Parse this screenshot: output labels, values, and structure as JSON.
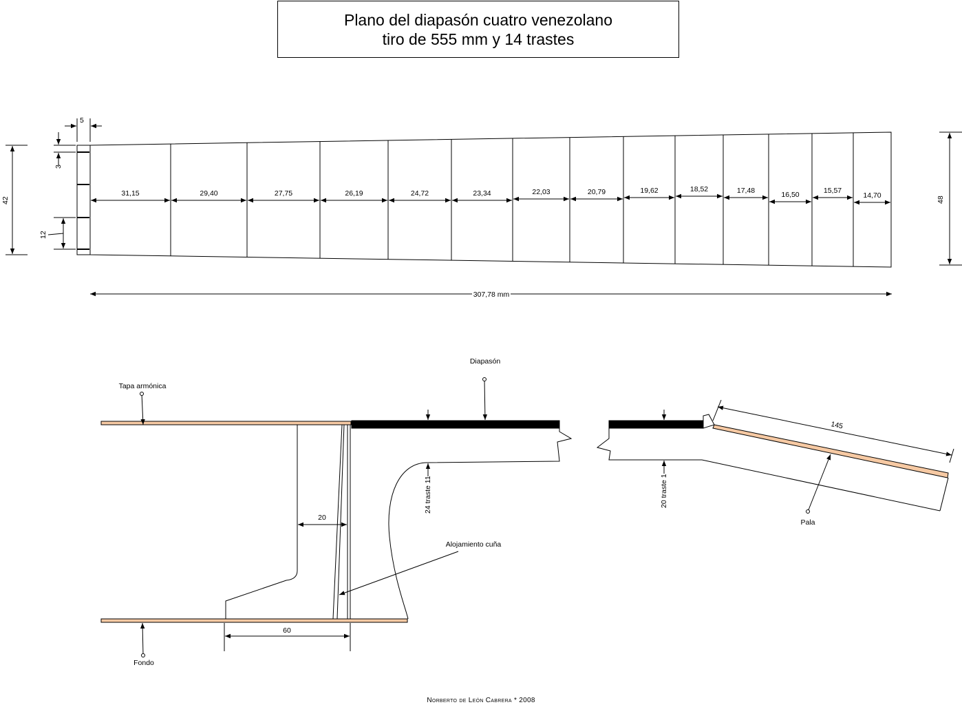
{
  "title": {
    "line1": "Plano del diapasón cuatro venezolano",
    "line2": "tiro de 555 mm y 14 trastes"
  },
  "top_view": {
    "nut_width_label": "5",
    "nut_small_label": "3",
    "string_spacing_label": "12",
    "width_nut_label": "42",
    "width_end_label": "48",
    "fret_spacings": [
      "31,15",
      "29,40",
      "27,75",
      "26,19",
      "24,72",
      "23,34",
      "22,03",
      "20,79",
      "19,62",
      "18,52",
      "17,48",
      "16,50",
      "15,57",
      "14,70"
    ],
    "total_length_label": "307,78 mm"
  },
  "side_view": {
    "tapa_label": "Tapa armónica",
    "fondo_label": "Fondo",
    "diapason_label": "Diapasón",
    "alojamiento_label": "Alojamiento cuña",
    "pala_label": "Pala",
    "block_width_label": "20",
    "base_width_label": "60",
    "traste_body_label": "24 traste 11",
    "traste_head_label": "20 traste 1",
    "pala_length_label": "145"
  },
  "colors": {
    "wood": "#f6c9a3",
    "fretboard": "#000000",
    "line": "#000000"
  },
  "footer": {
    "credit": "Norberto de León Cabrera * 2008"
  }
}
